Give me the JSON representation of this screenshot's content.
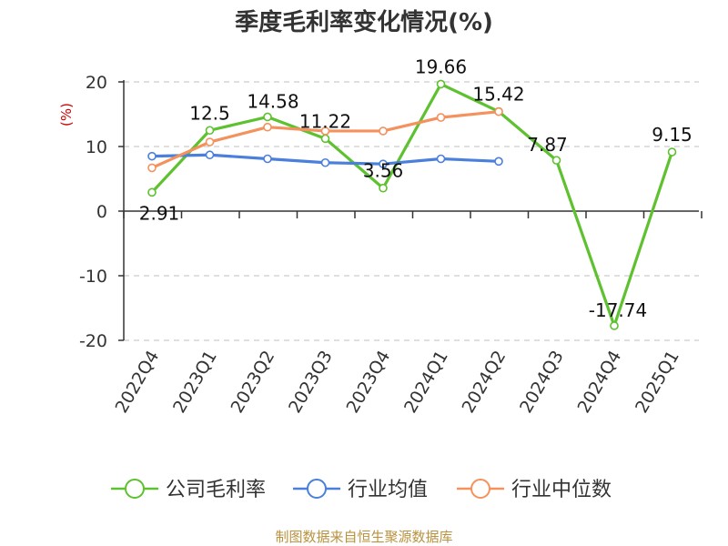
{
  "chart_data": {
    "type": "line",
    "title": "季度毛利率变化情况(%)",
    "ylabel": "(%)",
    "ylim": [
      -20,
      20
    ],
    "yticks": [
      20,
      10,
      0,
      -10,
      -20
    ],
    "categories": [
      "2022Q4",
      "2023Q1",
      "2023Q2",
      "2023Q3",
      "2023Q4",
      "2024Q1",
      "2024Q2",
      "2024Q3",
      "2024Q4",
      "2025Q1"
    ],
    "grid": true,
    "legend_position": "bottom",
    "series": [
      {
        "name": "公司毛利率",
        "color": "#5ec12f",
        "values": [
          2.91,
          12.5,
          14.58,
          11.22,
          3.56,
          19.66,
          15.42,
          7.87,
          -17.74,
          9.15
        ],
        "labels": [
          "2.91",
          "12.5",
          "14.58",
          "11.22",
          "3.56",
          "19.66",
          "15.42",
          "7.87",
          "-17.74",
          "9.15"
        ]
      },
      {
        "name": "行业均值",
        "color": "#4a7fdc",
        "values": [
          8.5,
          8.7,
          8.1,
          7.5,
          7.3,
          8.1,
          7.7,
          null,
          null,
          null
        ]
      },
      {
        "name": "行业中位数",
        "color": "#f4915c",
        "values": [
          6.7,
          10.7,
          13.0,
          12.4,
          12.4,
          14.5,
          15.4,
          null,
          null,
          null
        ]
      }
    ]
  },
  "footer": {
    "source": "制图数据来自恒生聚源数据库"
  }
}
